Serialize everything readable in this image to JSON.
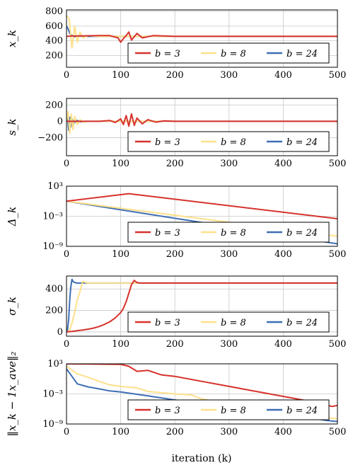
{
  "colors": {
    "b3": "#d7322c",
    "b8": "#fde08a",
    "b24": "#3f6eb4",
    "grid": "#c8c8c8"
  },
  "xlabel": "iteration (k)",
  "chart_data": [
    {
      "type": "line",
      "id": "xk",
      "ylabel": "x_k",
      "xlim": [
        0,
        500
      ],
      "ylim": [
        40,
        820
      ],
      "yscale": "linear",
      "xticks": [
        "0",
        "100",
        "200",
        "300",
        "400",
        "500"
      ],
      "yticks": [
        {
          "v": 200,
          "t": "200"
        },
        {
          "v": 400,
          "t": "400"
        },
        {
          "v": 600,
          "t": "600"
        },
        {
          "v": 800,
          "t": "800"
        }
      ],
      "grid": true,
      "legend_position": "bottom-right",
      "series": [
        {
          "name": "b = 3",
          "color_key": "b3",
          "x": [
            0,
            10,
            60,
            80,
            95,
            100,
            105,
            110,
            115,
            120,
            130,
            140,
            160,
            200,
            500
          ],
          "y": [
            460,
            465,
            470,
            470,
            440,
            380,
            430,
            470,
            520,
            410,
            500,
            440,
            470,
            460,
            460
          ]
        },
        {
          "name": "b = 8",
          "color_key": "b8",
          "x": [
            0,
            5,
            10,
            15,
            20,
            25,
            30,
            40,
            60,
            500
          ],
          "y": [
            740,
            700,
            300,
            600,
            380,
            520,
            440,
            470,
            460,
            460
          ]
        },
        {
          "name": "b = 24",
          "color_key": "b24",
          "x": [
            0,
            3,
            6,
            10,
            15,
            20,
            30,
            500
          ],
          "y": [
            600,
            560,
            500,
            470,
            455,
            465,
            460,
            460
          ]
        }
      ]
    },
    {
      "type": "line",
      "id": "sk",
      "ylabel": "s_k",
      "xlim": [
        0,
        500
      ],
      "ylim": [
        -420,
        280
      ],
      "yscale": "linear",
      "xticks": [
        "0",
        "100",
        "200",
        "300",
        "400",
        "500"
      ],
      "yticks": [
        {
          "v": -200,
          "t": "−200"
        },
        {
          "v": 0,
          "t": "0"
        },
        {
          "v": 200,
          "t": "200"
        }
      ],
      "grid": true,
      "legend_position": "bottom-right",
      "series": [
        {
          "name": "b = 3",
          "color_key": "b3",
          "x": [
            0,
            60,
            80,
            90,
            100,
            105,
            110,
            115,
            120,
            125,
            130,
            140,
            150,
            165,
            180,
            200,
            500
          ],
          "y": [
            0,
            0,
            10,
            -15,
            30,
            -40,
            70,
            -60,
            90,
            -50,
            40,
            -30,
            20,
            -10,
            5,
            0,
            0
          ]
        },
        {
          "name": "b = 8",
          "color_key": "b8",
          "x": [
            0,
            3,
            6,
            9,
            12,
            15,
            20,
            25,
            30,
            40,
            500
          ],
          "y": [
            0,
            120,
            -150,
            90,
            -100,
            60,
            -40,
            20,
            -10,
            0,
            0
          ]
        },
        {
          "name": "b = 24",
          "color_key": "b24",
          "x": [
            0,
            2,
            4,
            6,
            8,
            10,
            14,
            18,
            25,
            35,
            500
          ],
          "y": [
            0,
            60,
            -110,
            50,
            -70,
            30,
            -25,
            15,
            -5,
            0,
            0
          ]
        }
      ]
    },
    {
      "type": "line",
      "id": "delta",
      "ylabel": "Δ_k",
      "xlim": [
        0,
        500
      ],
      "ylim": [
        -9,
        3
      ],
      "yscale": "log10",
      "xticks": [
        "0",
        "100",
        "200",
        "300",
        "400",
        "500"
      ],
      "yticks": [
        {
          "v": -9,
          "t": "10⁻⁹"
        },
        {
          "v": -3,
          "t": "10⁻³"
        },
        {
          "v": 3,
          "t": "10³"
        }
      ],
      "grid": true,
      "legend_position": "bottom-right",
      "series": [
        {
          "name": "b = 3",
          "color_key": "b3",
          "x": [
            0,
            115,
            500
          ],
          "y": [
            0,
            1.5,
            -3.5
          ]
        },
        {
          "name": "b = 8",
          "color_key": "b8",
          "x": [
            0,
            500
          ],
          "y": [
            0,
            -7
          ]
        },
        {
          "name": "b = 24",
          "color_key": "b24",
          "x": [
            0,
            500
          ],
          "y": [
            0,
            -8.5
          ]
        }
      ]
    },
    {
      "type": "line",
      "id": "sigma",
      "ylabel": "σ_k",
      "xlim": [
        0,
        500
      ],
      "ylim": [
        -40,
        520
      ],
      "yscale": "linear",
      "xticks": [
        "0",
        "100",
        "200",
        "300",
        "400",
        "500"
      ],
      "yticks": [
        {
          "v": 0,
          "t": "0"
        },
        {
          "v": 200,
          "t": "200"
        },
        {
          "v": 400,
          "t": "400"
        }
      ],
      "grid": true,
      "legend_position": "bottom-right",
      "series": [
        {
          "name": "b = 3",
          "color_key": "b3",
          "x": [
            0,
            10,
            20,
            30,
            40,
            50,
            60,
            70,
            80,
            90,
            100,
            105,
            110,
            115,
            120,
            125,
            130,
            135,
            500
          ],
          "y": [
            0,
            5,
            12,
            18,
            26,
            36,
            50,
            70,
            95,
            130,
            180,
            220,
            280,
            360,
            440,
            480,
            460,
            455,
            455
          ]
        },
        {
          "name": "b = 8",
          "color_key": "b8",
          "x": [
            0,
            5,
            10,
            15,
            20,
            25,
            30,
            35,
            40,
            500
          ],
          "y": [
            0,
            10,
            80,
            180,
            300,
            380,
            470,
            460,
            455,
            455
          ]
        },
        {
          "name": "b = 24",
          "color_key": "b24",
          "x": [
            0,
            2,
            4,
            6,
            8,
            10,
            12,
            15,
            20,
            500
          ],
          "y": [
            0,
            20,
            120,
            300,
            420,
            490,
            470,
            460,
            455,
            455
          ]
        }
      ]
    },
    {
      "type": "line",
      "id": "consensus",
      "ylabel": "‖x_k − 1x_ave‖₂",
      "xlim": [
        0,
        500
      ],
      "ylim": [
        -9,
        3
      ],
      "yscale": "log10",
      "xticks": [
        "0",
        "100",
        "200",
        "300",
        "400",
        "500"
      ],
      "yticks": [
        {
          "v": -9,
          "t": "10⁻⁹"
        },
        {
          "v": -3,
          "t": "10⁻³"
        },
        {
          "v": 3,
          "t": "10³"
        }
      ],
      "grid": true,
      "legend_position": "bottom-right",
      "series": [
        {
          "name": "b = 3",
          "color_key": "b3",
          "x": [
            0,
            100,
            115,
            130,
            150,
            175,
            200,
            250,
            300,
            350,
            400,
            450,
            490,
            500
          ],
          "y": [
            3,
            2.9,
            2.5,
            1.5,
            1.7,
            0.8,
            0.5,
            -0.5,
            -1.5,
            -2.5,
            -3.5,
            -4.5,
            -5.5,
            -5.3
          ]
        },
        {
          "name": "b = 8",
          "color_key": "b8",
          "x": [
            0,
            20,
            40,
            60,
            80,
            100,
            130,
            150,
            180,
            200,
            230,
            250,
            300,
            350,
            400,
            450,
            500
          ],
          "y": [
            2.5,
            1,
            0.3,
            -0.5,
            -1.2,
            -1.5,
            -1.8,
            -2.5,
            -2.8,
            -3,
            -3.2,
            -4,
            -5,
            -5.8,
            -6.6,
            -7.3,
            -8
          ]
        },
        {
          "name": "b = 24",
          "color_key": "b24",
          "x": [
            0,
            10,
            20,
            40,
            60,
            80,
            100,
            150,
            200,
            250,
            300,
            350,
            400,
            450,
            480,
            500
          ],
          "y": [
            2,
            0.5,
            -1,
            -1.6,
            -2,
            -2.4,
            -2.6,
            -3.4,
            -4.2,
            -5,
            -5.8,
            -6.5,
            -7.2,
            -7.8,
            -8.3,
            -8.5
          ]
        }
      ]
    }
  ]
}
